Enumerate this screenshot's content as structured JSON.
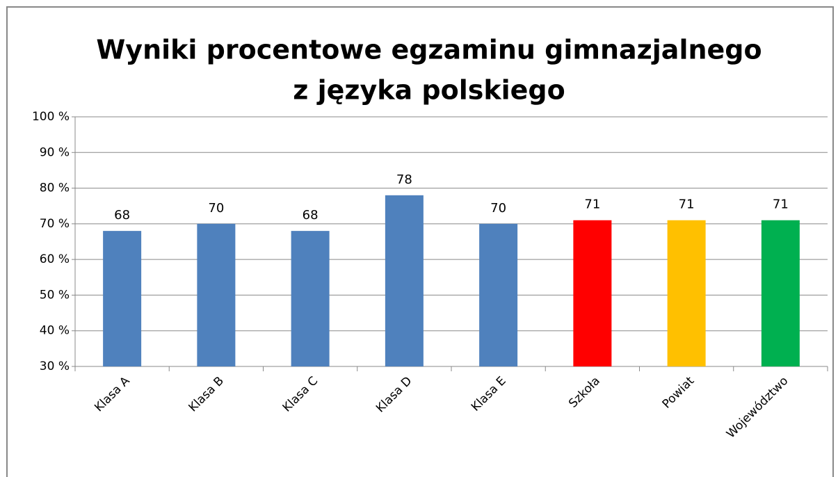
{
  "chart_data": {
    "type": "bar",
    "title": [
      "Wyniki procentowe egzaminu gimnazjalnego",
      "z języka polskiego"
    ],
    "categories": [
      "Klasa A",
      "Klasa B",
      "Klasa C",
      "Klasa D",
      "Klasa E",
      "Szkoła",
      "Powiat",
      "Województwo"
    ],
    "values": [
      68,
      70,
      68,
      78,
      70,
      71,
      71,
      71
    ],
    "colors": [
      "#4f81bd",
      "#4f81bd",
      "#4f81bd",
      "#4f81bd",
      "#4f81bd",
      "#ff0000",
      "#ffc000",
      "#00b050"
    ],
    "ylim": [
      30,
      100
    ],
    "yticks": [
      {
        "value": 30,
        "label": "30 %"
      },
      {
        "value": 40,
        "label": "40 %"
      },
      {
        "value": 50,
        "label": "50 %"
      },
      {
        "value": 60,
        "label": "60 %"
      },
      {
        "value": 70,
        "label": "70 %"
      },
      {
        "value": 80,
        "label": "80 %"
      },
      {
        "value": 90,
        "label": "90 %"
      },
      {
        "value": 100,
        "label": "100 %"
      }
    ],
    "grid": true
  }
}
